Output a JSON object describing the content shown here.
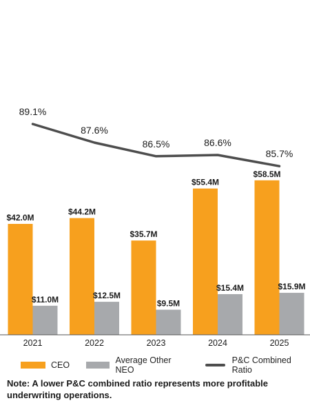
{
  "chart_data": {
    "type": "bar",
    "categories": [
      "2021",
      "2022",
      "2023",
      "2024",
      "2025"
    ],
    "series": [
      {
        "name": "CEO",
        "values": [
          42.0,
          44.2,
          35.7,
          55.4,
          58.5
        ],
        "labels": [
          "$42.0M",
          "$44.2M",
          "$35.7M",
          "$55.4M",
          "$58.5M"
        ],
        "color": "#F7A01E"
      },
      {
        "name": "Average Other NEO",
        "values": [
          11.0,
          12.5,
          9.5,
          15.4,
          15.9
        ],
        "labels": [
          "$11.0M",
          "$12.5M",
          "$9.5M",
          "$15.4M",
          "$15.9M"
        ],
        "color": "#A7A9AC"
      }
    ],
    "line_series": {
      "name": "P&C Combined Ratio",
      "values": [
        89.1,
        87.6,
        86.5,
        86.6,
        85.7
      ],
      "labels": [
        "89.1%",
        "87.6%",
        "86.5%",
        "86.6%",
        "85.7%"
      ],
      "color": "#4D4D4D"
    },
    "legend_position": "bottom",
    "grid": false
  },
  "note": "Note: A lower P&C combined ratio represents more profitable underwriting operations."
}
